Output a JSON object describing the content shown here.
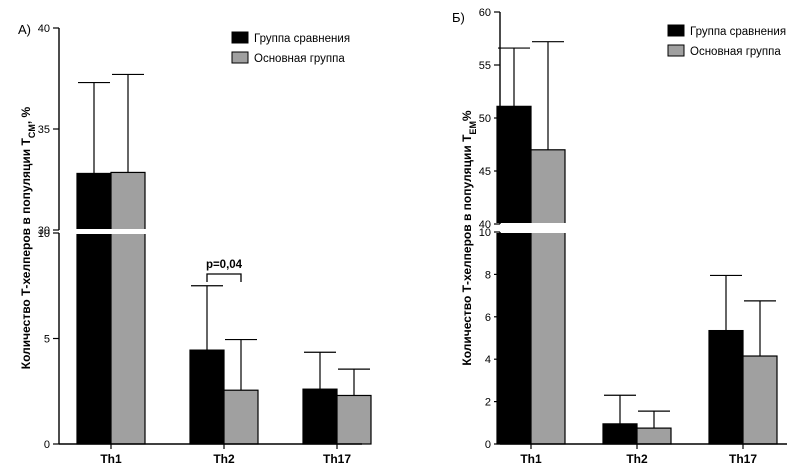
{
  "chart_data": [
    {
      "type": "bar",
      "panel_label": "А)",
      "categories": [
        "Th1",
        "Th2",
        "Th17"
      ],
      "series": [
        {
          "name": "Группа сравнения",
          "color": "#000000",
          "values": [
            32.8,
            4.45,
            2.6
          ],
          "errors_upper": [
            37.3,
            7.5,
            4.35
          ]
        },
        {
          "name": "Основная группа",
          "color": "#a0a0a0",
          "values": [
            32.85,
            2.55,
            2.3
          ],
          "errors_upper": [
            37.7,
            4.95,
            3.55
          ]
        }
      ],
      "ylabel_main": "Количество Т-хелперов в популяции Т",
      "ylabel_sub": "CM",
      "ylabel_suffix": ", %",
      "axis_break": true,
      "lower_ylim": [
        0,
        10
      ],
      "lower_ticks": [
        "0",
        "5",
        "10"
      ],
      "upper_ylim": [
        30,
        40
      ],
      "upper_ticks": [
        "30",
        "35",
        "40"
      ],
      "annotation": {
        "text": "p=0,04",
        "category": "Th2"
      },
      "legend_position": "top-right"
    },
    {
      "type": "bar",
      "panel_label": "Б)",
      "categories": [
        "Th1",
        "Th2",
        "Th17"
      ],
      "series": [
        {
          "name": "Группа сравнения",
          "color": "#000000",
          "values": [
            51.1,
            0.95,
            5.35
          ],
          "errors_upper": [
            56.6,
            2.3,
            7.95
          ]
        },
        {
          "name": "Основная группа",
          "color": "#a0a0a0",
          "values": [
            47.0,
            0.75,
            4.15
          ],
          "errors_upper": [
            57.2,
            1.55,
            6.75
          ]
        }
      ],
      "ylabel_main": "Количество Т-хелперов в популяции Т",
      "ylabel_sub": "EM",
      "ylabel_suffix": "%",
      "axis_break": true,
      "lower_ylim": [
        0,
        10
      ],
      "lower_ticks": [
        "0",
        "2",
        "4",
        "6",
        "8",
        "10"
      ],
      "upper_ylim": [
        40,
        60
      ],
      "upper_ticks": [
        "40",
        "45",
        "50",
        "55",
        "60"
      ],
      "legend_position": "top-right"
    }
  ]
}
